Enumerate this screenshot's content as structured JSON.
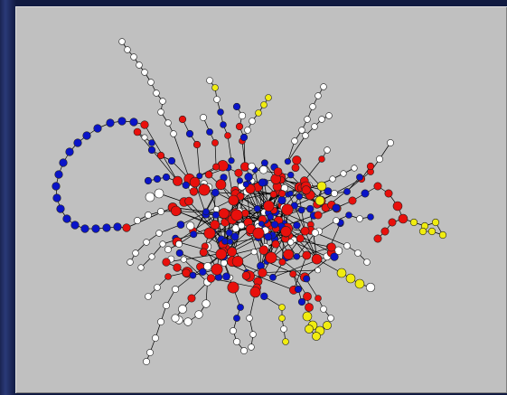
{
  "colors": {
    "background": "#c0c0c0",
    "frame": "#1e2a5c",
    "edge": "#000000",
    "node_white": "#ffffff",
    "node_red": "#e8100c",
    "node_blue": "#0a14c8",
    "node_yellow": "#f0ec10"
  },
  "legend": "",
  "node_color_classes": [
    "white",
    "red",
    "blue",
    "yellow"
  ]
}
